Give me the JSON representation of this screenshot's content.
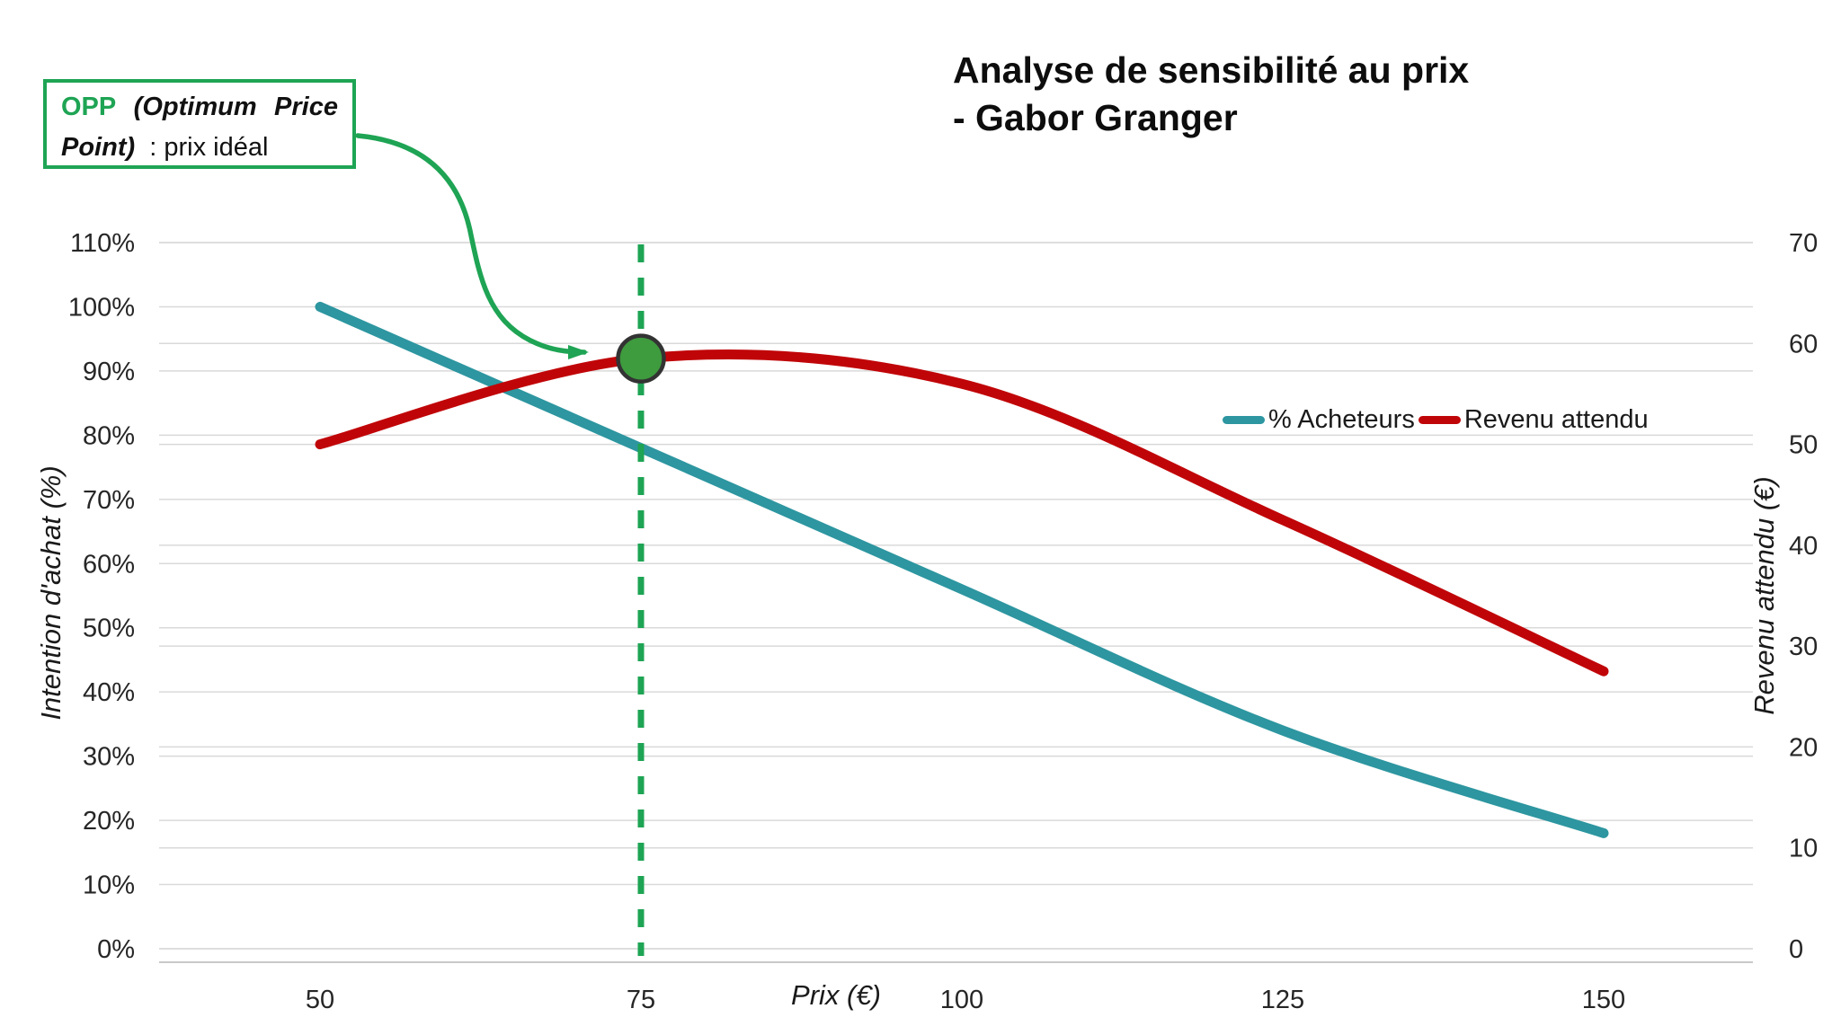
{
  "title": {
    "line1": "Analyse de sensibilité au prix",
    "line2": "- Gabor Granger"
  },
  "annotation": {
    "abbr": "OPP",
    "word1": "(Optimum",
    "word2": "Price",
    "word3": "Point)",
    "suffix": ": prix idéal"
  },
  "legend": [
    {
      "label": "% Acheteurs",
      "color": "#2d96a0"
    },
    {
      "label": "Revenu attendu",
      "color": "#c00508"
    }
  ],
  "colors": {
    "accent_green": "#1ea454",
    "teal_series": "#2d96a0",
    "red_series": "#c00508",
    "marker_fill": "#3e9b3e",
    "marker_stroke": "#333333",
    "gridline": "#d9d9d9",
    "axis_line": "#c9c9c9",
    "tick_text": "#262626"
  },
  "chart_data": {
    "type": "line",
    "title": "Analyse de sensibilité au prix - Gabor Granger",
    "xlabel": "Prix (€)",
    "ylabel_left": "Intention d'achat (%)",
    "ylabel_right": "Revenu attendu (€)",
    "x": [
      50,
      75,
      100,
      125,
      150
    ],
    "x_ticks": [
      50,
      75,
      100,
      125,
      150
    ],
    "xlim": [
      50,
      150
    ],
    "y_left_ticks_percent": [
      0,
      10,
      20,
      30,
      40,
      50,
      60,
      70,
      80,
      90,
      100,
      110
    ],
    "ylim_left": [
      0,
      110
    ],
    "y_right_ticks": [
      0,
      10,
      20,
      30,
      40,
      50,
      60,
      70
    ],
    "ylim_right": [
      0,
      70
    ],
    "grid": "horizontal-both-axes",
    "legend_position": "center-right",
    "series": [
      {
        "name": "% Acheteurs",
        "axis": "left",
        "color": "#2d96a0",
        "values_percent": [
          100,
          78,
          56,
          34,
          18
        ]
      },
      {
        "name": "Revenu attendu",
        "axis": "right",
        "color": "#c00508",
        "values_eur": [
          50,
          58.5,
          56,
          42.5,
          27.5
        ]
      }
    ],
    "opp_marker": {
      "label": "OPP (Optimum Price Point) : prix idéal",
      "x": 75,
      "value_right_eur": 58.5,
      "dashed_vertical_line_x": 75
    }
  }
}
